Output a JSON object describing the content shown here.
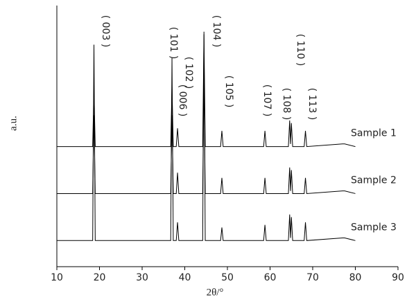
{
  "chart_data": {
    "type": "line",
    "xlabel": "2θ/°",
    "ylabel": "a.u.",
    "xlim": [
      10,
      90
    ],
    "xticks": [
      10,
      20,
      30,
      40,
      50,
      60,
      70,
      80,
      90
    ],
    "ylim": [
      0,
      100
    ],
    "annotations": [
      "( 003 )",
      "( 101 )",
      "( 102 )",
      "( 006 )",
      "( 104 )",
      "( 105 )",
      "( 107 )",
      "( 108 )",
      "( 110 )",
      "( 113 )"
    ],
    "x": [
      10,
      18.4,
      18.7,
      19.0,
      36.7,
      37.0,
      37.3,
      38.0,
      38.3,
      38.6,
      44.2,
      44.5,
      44.8,
      48.4,
      48.7,
      49.0,
      58.5,
      58.8,
      59.1,
      64.3,
      64.6,
      64.8,
      65.0,
      65.3,
      68.0,
      68.3,
      68.6,
      77.0,
      77.5,
      80
    ],
    "series": [
      {
        "name": "Sample 1",
        "color": "#000000",
        "values": [
          46,
          46,
          68,
          46,
          46,
          69,
          46,
          46,
          53,
          46,
          46,
          89,
          46,
          46,
          52,
          46,
          46,
          52,
          46,
          46,
          56,
          47,
          55,
          46,
          46,
          52,
          46,
          47,
          47,
          46
        ]
      },
      {
        "name": "Sample 2",
        "color": "#000000",
        "values": [
          28,
          28,
          58,
          28,
          28,
          58,
          28,
          28,
          36,
          28,
          28,
          72,
          28,
          28,
          34,
          28,
          28,
          34,
          28,
          28,
          38,
          29,
          37,
          28,
          28,
          34,
          28,
          29,
          29,
          28
        ]
      },
      {
        "name": "Sample 3",
        "color": "#000000",
        "values": [
          10,
          10,
          85,
          10,
          10,
          80,
          10,
          10,
          17,
          10,
          10,
          90,
          10,
          10,
          15,
          10,
          10,
          16,
          10,
          10,
          20,
          11,
          19,
          10,
          10,
          17,
          10,
          11,
          11,
          10
        ]
      }
    ]
  }
}
